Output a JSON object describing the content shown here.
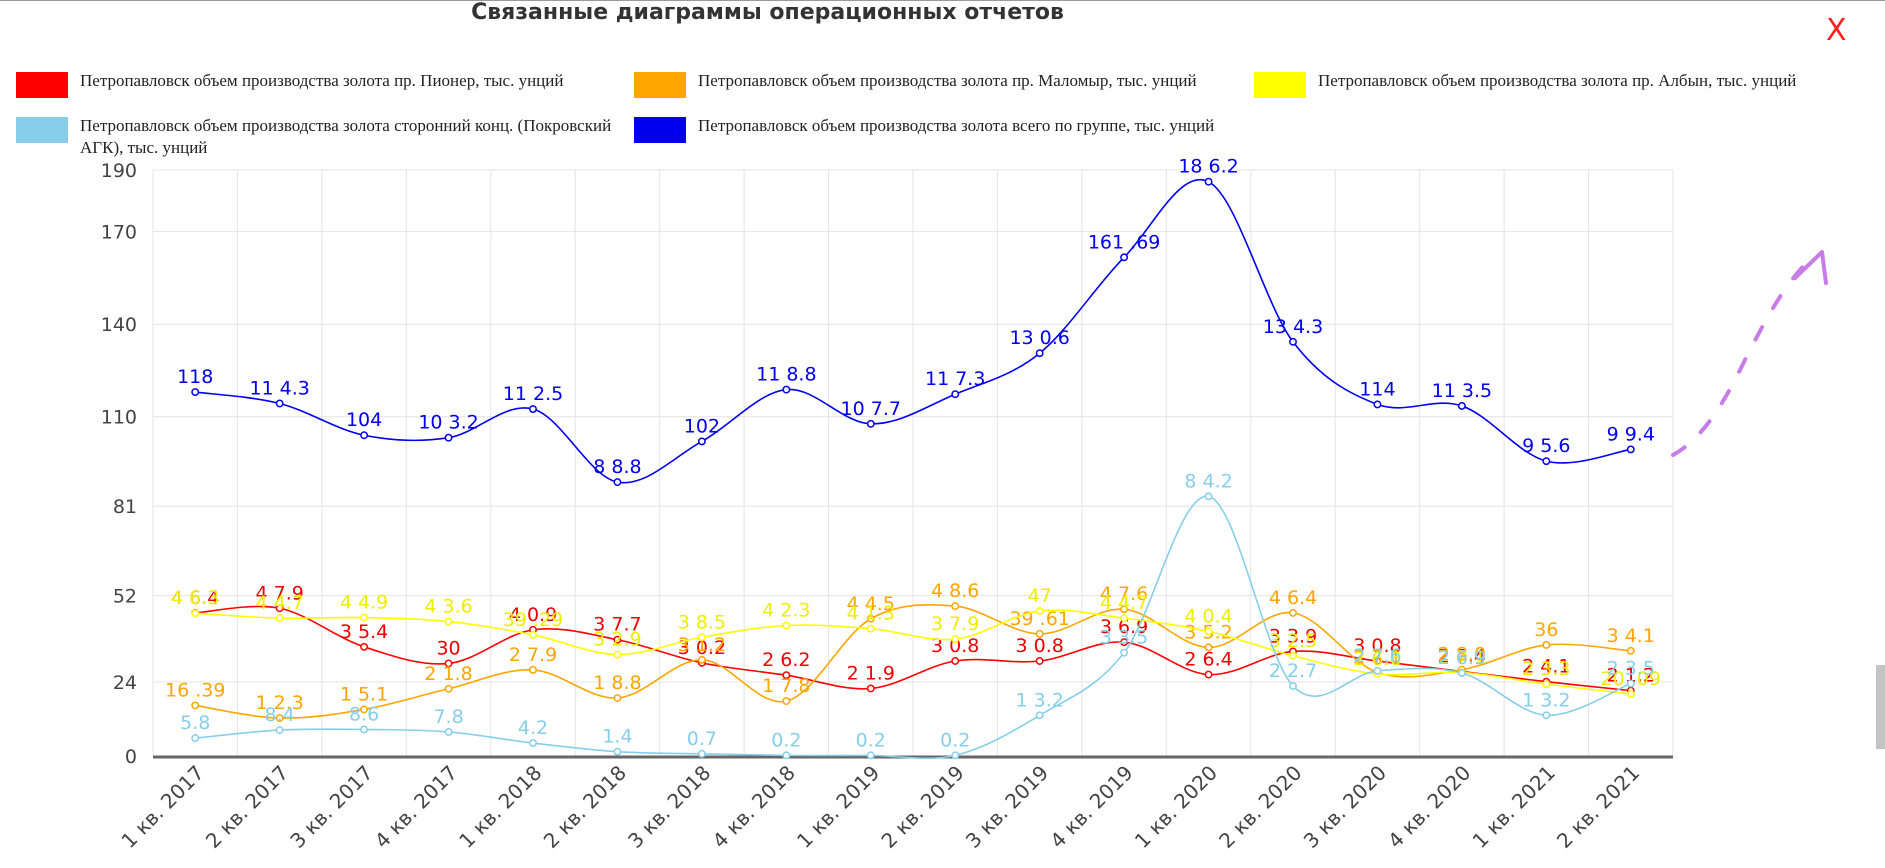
{
  "title": "Связанные диаграммы операционных отчетов",
  "close_label": "X",
  "chart_data": {
    "type": "line",
    "categories": [
      "1 кв. 2017",
      "2 кв. 2017",
      "3 кв. 2017",
      "4 кв. 2017",
      "1 кв. 2018",
      "2 кв. 2018",
      "3 кв. 2018",
      "4 кв. 2018",
      "1 кв. 2019",
      "2 кв. 2019",
      "3 кв. 2019",
      "4 кв. 2019",
      "1 кв. 2020",
      "2 кв. 2020",
      "3 кв. 2020",
      "4 кв. 2020",
      "1 кв. 2021",
      "2 кв. 2021"
    ],
    "y_ticks": [
      "0",
      "24",
      "52",
      "81",
      "110",
      "140",
      "170",
      "190"
    ],
    "ylim": [
      0,
      190
    ],
    "grid": true,
    "legend_position": "top",
    "series": [
      {
        "name": "Петропавловск объем производства золота пр. Пионер, тыс. унций",
        "color": "#ff0000",
        "values": [
          46.4,
          47.9,
          35.4,
          30,
          40.9,
          37.7,
          30.2,
          26.2,
          21.9,
          30.8,
          30.8,
          36.9,
          26.4,
          33.9,
          30.8,
          27.4,
          24.1,
          21.2
        ],
        "labels": [
          "4 6.4",
          "4 7.9",
          "3 5.4",
          "30",
          "4 0.9",
          "3 7.7",
          "3 0.2",
          "2 6.2",
          "2 1.9",
          "3 0.8",
          "3 0.8",
          "3 6.9",
          "2 6.4",
          "3 3.9",
          "3 0.8",
          "2 7.4",
          "2 4.1",
          "2 1.2"
        ]
      },
      {
        "name": "Петропавловск объем производства золота пр. Маломыр, тыс. унций",
        "color": "#ffa500",
        "values": [
          16.39,
          12.3,
          15.1,
          21.8,
          27.9,
          18.8,
          31.2,
          17.8,
          44.5,
          48.6,
          39.61,
          47.6,
          35.2,
          46.4,
          27.1,
          28.0,
          36,
          34.1
        ],
        "labels": [
          "16 .39",
          "1 2.3",
          "1 5.1",
          "2 1.8",
          "2 7.9",
          "1 8.8",
          "3 1.2",
          "1 7.8",
          "4 4.5",
          "4 8.6",
          "39 .61",
          "4 7.6",
          "3 5.2",
          "4 6.4",
          "2 7.1",
          "2 8.0",
          "36",
          "3 4.1"
        ]
      },
      {
        "name": "Петропавловск объем производства золота пр. Албын, тыс. унций",
        "color": "#ffff00",
        "values": [
          46.3,
          44.7,
          44.9,
          43.6,
          39.29,
          32.9,
          38.5,
          42.3,
          41.3,
          37.9,
          47,
          44.7,
          40.4,
          32.5,
          26.6,
          27.1,
          23.3,
          20.09
        ],
        "labels": [
          "4 6.3",
          "4 4.7",
          "4 4.9",
          "4 3.6",
          "39 .29",
          "3 2.9",
          "3 8.5",
          "4 2.3",
          "4 1.3",
          "3 7.9",
          "47",
          "4 4.7",
          "4 0.4",
          "3 2.5",
          "2 6.6",
          "2 7.1",
          "2 3.3",
          "20 .09"
        ]
      },
      {
        "name": "Петропавловск объем производства золота сторонний конц. (Покровский АГК), тыс. унций",
        "color": "#87ceeb",
        "values": [
          5.8,
          8.4,
          8.6,
          7.8,
          4.2,
          1.4,
          0.7,
          0.2,
          0.2,
          0.2,
          13.2,
          33.5,
          84.2,
          22.7,
          27.6,
          26.9,
          13.2,
          23.5
        ],
        "labels": [
          "5.8",
          "8.4",
          "8.6",
          "7.8",
          "4.2",
          "1.4",
          "0.7",
          "0.2",
          "0.2",
          "0.2",
          "1 3.2",
          "3 3.5",
          "8 4.2",
          "2 2.7",
          "2 7.6",
          "2 6.9",
          "1 3.2",
          "2 3.5"
        ]
      },
      {
        "name": "Петропавловск объем производства золота всего по группе, тыс. унций",
        "color": "#0000ee",
        "values": [
          118,
          114.3,
          104,
          103.2,
          112.5,
          88.8,
          102,
          118.8,
          107.7,
          117.3,
          130.6,
          161.69,
          186.2,
          134.3,
          114,
          113.5,
          95.6,
          99.4
        ],
        "labels": [
          "118",
          "11 4.3",
          "104",
          "10 3.2",
          "11 2.5",
          "8 8.8",
          "102",
          "11 8.8",
          "10 7.7",
          "11 7.3",
          "13 0.6",
          "161 .69",
          "18 6.2",
          "13 4.3",
          "114",
          "11 3.5",
          "9 5.6",
          "9 9.4"
        ]
      }
    ]
  }
}
